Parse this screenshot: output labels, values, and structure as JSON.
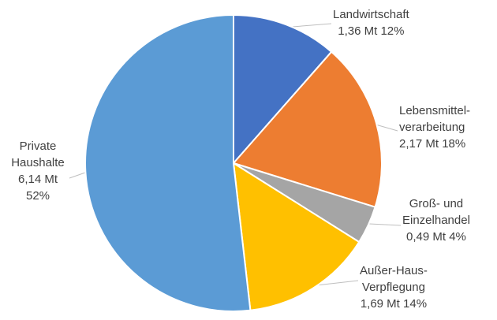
{
  "chart_data": {
    "type": "pie",
    "slices": [
      {
        "label_lines": [
          "Landwirtschaft"
        ],
        "value_text": "1,36 Mt 12%",
        "value": 1.36,
        "percent": 12,
        "color": "#4472c4"
      },
      {
        "label_lines": [
          "Lebensmittel-",
          "verarbeitung"
        ],
        "value_text": "2,17 Mt 18%",
        "value": 2.17,
        "percent": 18,
        "color": "#ed7d31"
      },
      {
        "label_lines": [
          "Groß- und",
          "Einzelhandel"
        ],
        "value_text": "0,49 Mt 4%",
        "value": 0.49,
        "percent": 4,
        "color": "#a5a5a5"
      },
      {
        "label_lines": [
          "Außer-Haus-",
          "Verpflegung"
        ],
        "value_text": "1,69 Mt 14%",
        "value": 1.69,
        "percent": 14,
        "color": "#ffc000"
      },
      {
        "label_lines": [
          "Private",
          "Haushalte",
          "6,14 Mt",
          "52%"
        ],
        "value_text": "",
        "value": 6.14,
        "percent": 52,
        "color": "#5b9bd5"
      }
    ]
  }
}
